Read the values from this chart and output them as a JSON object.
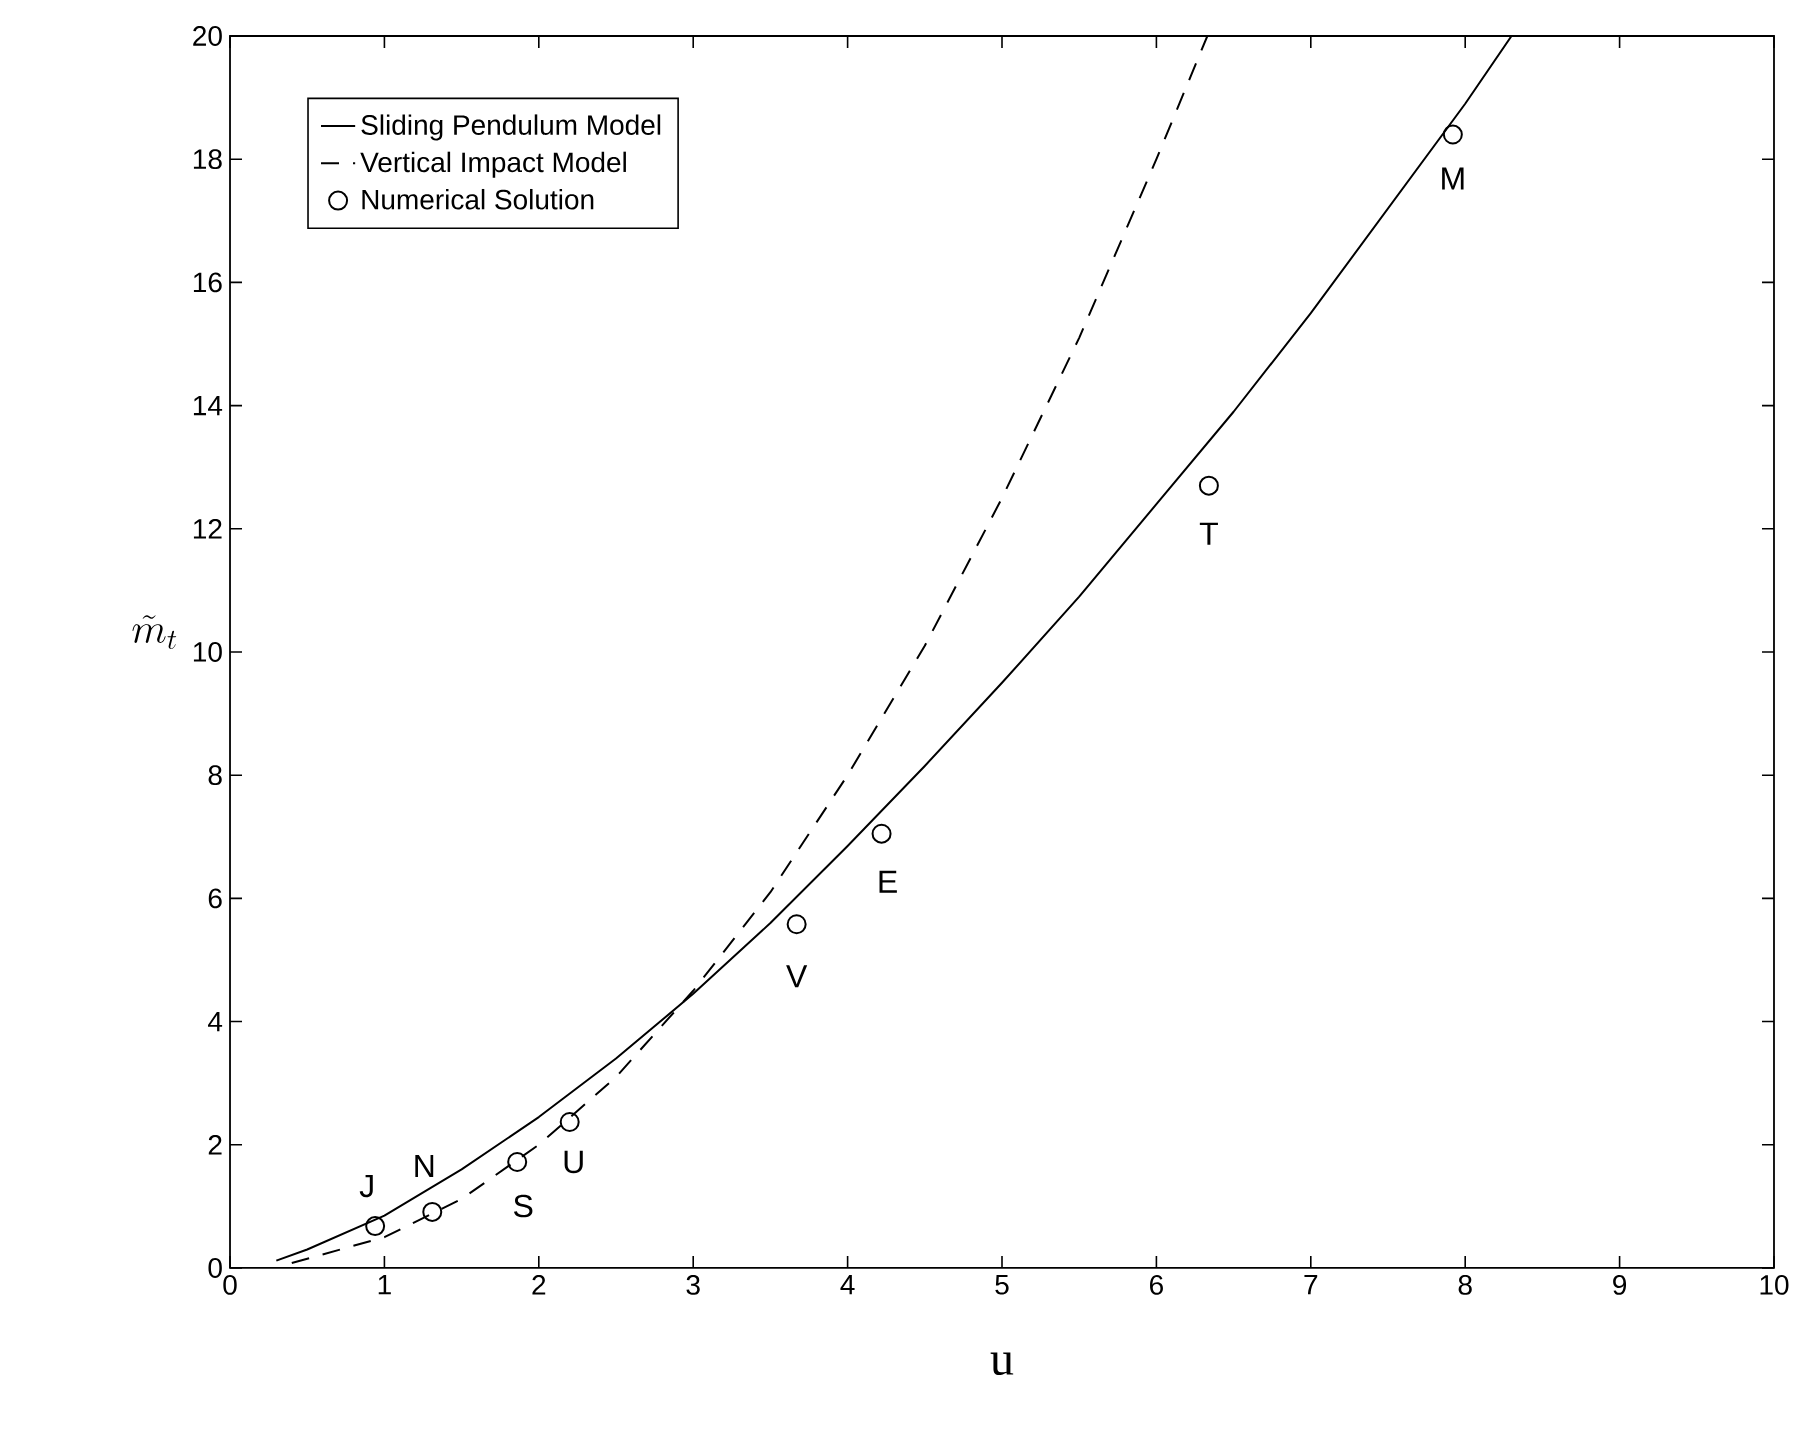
{
  "chart_data": {
    "type": "line",
    "xlabel": "u",
    "ylabel": "\\tilde{m}_t",
    "xlim": [
      0,
      10
    ],
    "ylim": [
      0,
      20
    ],
    "xticks": [
      0,
      1,
      2,
      3,
      4,
      5,
      6,
      7,
      8,
      9,
      10
    ],
    "yticks": [
      0,
      2,
      4,
      6,
      8,
      10,
      12,
      14,
      16,
      18,
      20
    ],
    "grid": false,
    "legend": "top left",
    "series": [
      {
        "name": "Sliding Pendulum Model",
        "line_style": "solid",
        "marker": "none",
        "color": "#000000",
        "x": [
          0.3,
          0.5,
          1,
          1.5,
          2,
          2.5,
          3,
          3.5,
          4,
          4.5,
          5,
          5.5,
          6,
          6.5,
          7,
          7.5,
          8,
          8.3
        ],
        "values": [
          0.12,
          0.3,
          0.85,
          1.6,
          2.45,
          3.4,
          4.45,
          5.6,
          6.85,
          8.15,
          9.5,
          10.9,
          12.4,
          13.9,
          15.5,
          17.2,
          18.9,
          20
        ]
      },
      {
        "name": "Vertical Impact Model",
        "line_style": "dashed",
        "marker": "none",
        "color": "#000000",
        "x": [
          0.4,
          1,
          1.5,
          2,
          2.5,
          3,
          3.5,
          4,
          4.5,
          5,
          5.5,
          6,
          6.33
        ],
        "values": [
          0.08,
          0.5,
          1.12,
          2.0,
          3.1,
          4.5,
          6.1,
          8.0,
          10.1,
          12.5,
          15.1,
          18.0,
          20
        ]
      },
      {
        "name": "Numerical Solution",
        "type": "scatter",
        "marker": "circle",
        "color": "#000000",
        "x": [
          0.94,
          1.31,
          1.86,
          2.2,
          3.67,
          4.22,
          6.34,
          7.92
        ],
        "values": [
          0.68,
          0.91,
          1.72,
          2.37,
          5.58,
          7.05,
          12.7,
          18.4
        ]
      }
    ],
    "annotations": [
      {
        "text": "J",
        "x": 0.94,
        "y": 0.68
      },
      {
        "text": "N",
        "x": 1.31,
        "y": 0.91
      },
      {
        "text": "S",
        "x": 1.86,
        "y": 1.72
      },
      {
        "text": "U",
        "x": 2.2,
        "y": 2.37
      },
      {
        "text": "V",
        "x": 3.67,
        "y": 5.58
      },
      {
        "text": "E",
        "x": 4.22,
        "y": 7.05
      },
      {
        "text": "T",
        "x": 6.34,
        "y": 12.7
      },
      {
        "text": "M",
        "x": 7.92,
        "y": 18.4
      }
    ]
  }
}
